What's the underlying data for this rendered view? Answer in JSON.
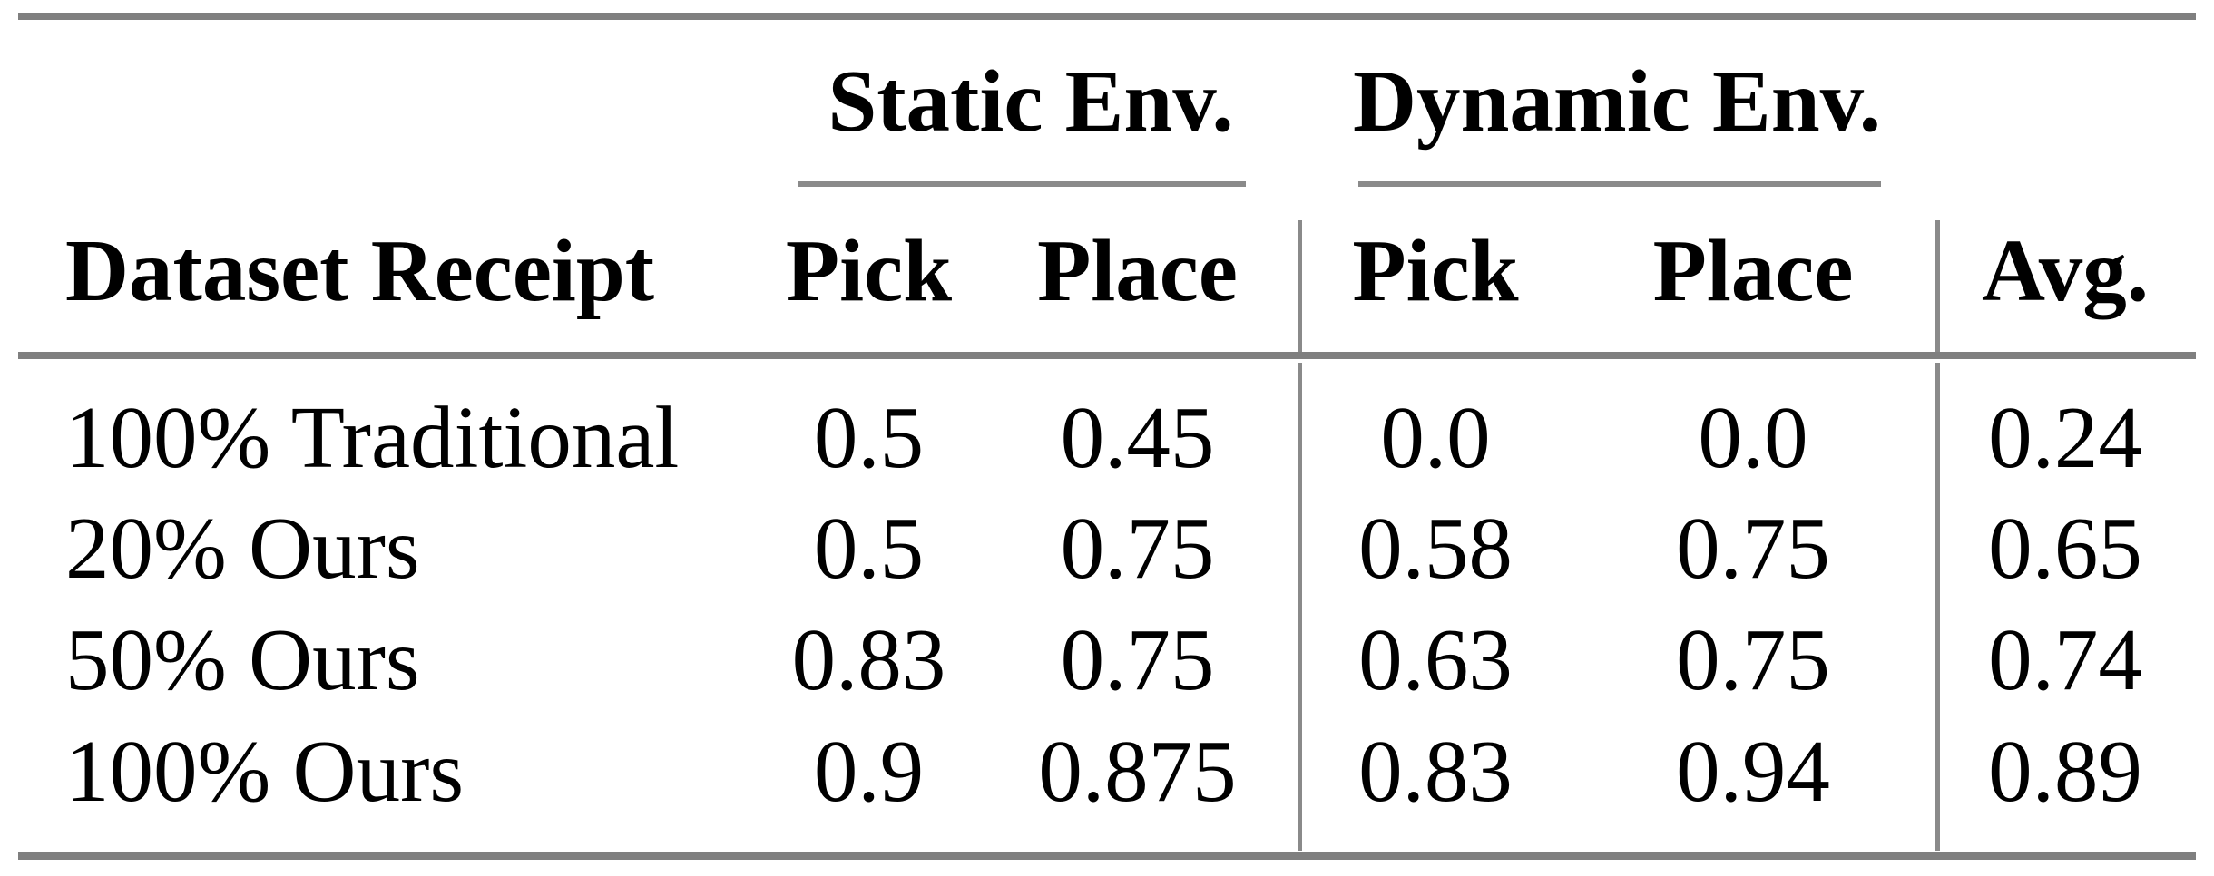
{
  "colors": {
    "background": "#ffffff",
    "thick_rule": "#7f7f7f",
    "thin_rule": "#8a8a8a",
    "text": "#000000"
  },
  "table": {
    "group_headers": [
      {
        "label": "Static Env."
      },
      {
        "label": "Dynamic Env."
      }
    ],
    "column_headers": {
      "dataset": "Dataset Receipt",
      "static_pick": "Pick",
      "static_place": "Place",
      "dynamic_pick": "Pick",
      "dynamic_place": "Place",
      "avg": "Avg."
    },
    "rows": [
      {
        "label": "100% Traditional",
        "static_pick": "0.5",
        "static_place": "0.45",
        "dynamic_pick": "0.0",
        "dynamic_place": "0.0",
        "avg": "0.24"
      },
      {
        "label": "20% Ours",
        "static_pick": "0.5",
        "static_place": "0.75",
        "dynamic_pick": "0.58",
        "dynamic_place": "0.75",
        "avg": "0.65"
      },
      {
        "label": "50% Ours",
        "static_pick": "0.83",
        "static_place": "0.75",
        "dynamic_pick": "0.63",
        "dynamic_place": "0.75",
        "avg": "0.74"
      },
      {
        "label": "100% Ours",
        "static_pick": "0.9",
        "static_place": "0.875",
        "dynamic_pick": "0.83",
        "dynamic_place": "0.94",
        "avg": "0.89"
      }
    ]
  },
  "chart_data": {
    "type": "table",
    "columns": [
      "Dataset Receipt",
      "Static Env. Pick",
      "Static Env. Place",
      "Dynamic Env. Pick",
      "Dynamic Env. Place",
      "Avg."
    ],
    "rows": [
      [
        "100% Traditional",
        0.5,
        0.45,
        0.0,
        0.0,
        0.24
      ],
      [
        "20% Ours",
        0.5,
        0.75,
        0.58,
        0.75,
        0.65
      ],
      [
        "50% Ours",
        0.83,
        0.75,
        0.63,
        0.75,
        0.74
      ],
      [
        "100% Ours",
        0.9,
        0.875,
        0.83,
        0.94,
        0.89
      ]
    ]
  }
}
